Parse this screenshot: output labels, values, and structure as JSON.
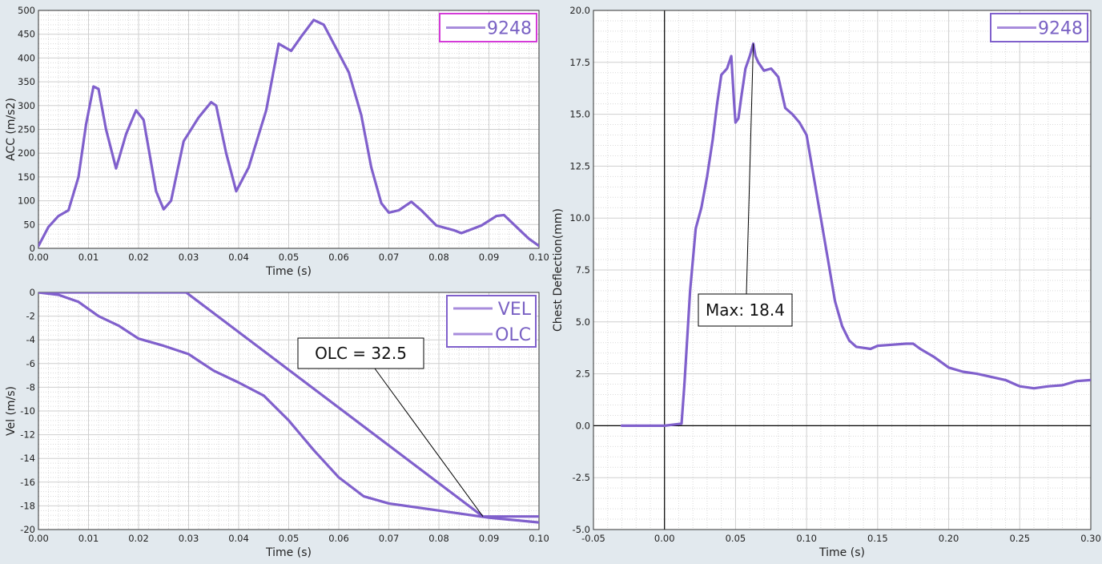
{
  "chart_data": [
    {
      "id": "acc",
      "type": "line",
      "title": "",
      "xlabel": "Time (s)",
      "ylabel": "ACC (m/s2)",
      "xlim": [
        0,
        0.1
      ],
      "ylim": [
        0,
        500
      ],
      "xticks": [
        0,
        0.01,
        0.02,
        0.03,
        0.04,
        0.05,
        0.06,
        0.07,
        0.08,
        0.09,
        0.1
      ],
      "xtick_labels": [
        "0.00",
        "0.01",
        "0.02",
        "0.03",
        "0.04",
        "0.05",
        "0.06",
        "0.07",
        "0.08",
        "0.09",
        "0.10"
      ],
      "yticks": [
        0,
        50,
        100,
        150,
        200,
        250,
        300,
        350,
        400,
        450,
        500
      ],
      "ytick_labels": [
        "0",
        "50",
        "100",
        "150",
        "200",
        "250",
        "300",
        "350",
        "400",
        "450",
        "500"
      ],
      "grid": true,
      "legend_position": "top-right",
      "legend_border_color": "#d43bd8",
      "series": [
        {
          "name": "9248",
          "color": "#8060cc",
          "x": [
            0.0,
            0.002,
            0.004,
            0.006,
            0.008,
            0.0095,
            0.011,
            0.012,
            0.0135,
            0.0155,
            0.0175,
            0.0195,
            0.021,
            0.0235,
            0.025,
            0.0265,
            0.029,
            0.032,
            0.0345,
            0.0355,
            0.0375,
            0.0395,
            0.042,
            0.0455,
            0.048,
            0.0505,
            0.0525,
            0.055,
            0.057,
            0.0595,
            0.062,
            0.0645,
            0.0665,
            0.0685,
            0.07,
            0.072,
            0.0745,
            0.0765,
            0.0795,
            0.083,
            0.0845,
            0.0885,
            0.0915,
            0.093,
            0.0955,
            0.098,
            0.1
          ],
          "y": [
            5,
            45,
            68,
            80,
            150,
            260,
            340,
            335,
            250,
            168,
            240,
            290,
            270,
            120,
            82,
            100,
            225,
            275,
            307,
            300,
            200,
            120,
            170,
            290,
            430,
            415,
            445,
            480,
            470,
            420,
            370,
            280,
            170,
            95,
            75,
            80,
            98,
            80,
            48,
            38,
            32,
            48,
            68,
            70,
            45,
            20,
            5
          ]
        }
      ]
    },
    {
      "id": "vel",
      "type": "line",
      "title": "",
      "xlabel": "Time (s)",
      "ylabel": "Vel (m/s)",
      "xlim": [
        0,
        0.1
      ],
      "ylim": [
        -20,
        0
      ],
      "xticks": [
        0,
        0.01,
        0.02,
        0.03,
        0.04,
        0.05,
        0.06,
        0.07,
        0.08,
        0.09,
        0.1
      ],
      "xtick_labels": [
        "0.00",
        "0.01",
        "0.02",
        "0.03",
        "0.04",
        "0.05",
        "0.06",
        "0.07",
        "0.08",
        "0.09",
        "0.10"
      ],
      "yticks": [
        0,
        -2,
        -4,
        -6,
        -8,
        -10,
        -12,
        -14,
        -16,
        -18,
        -20
      ],
      "ytick_labels": [
        "0",
        "-2",
        "-4",
        "-6",
        "-8",
        "-10",
        "-12",
        "-14",
        "-16",
        "-18",
        "-20"
      ],
      "grid": true,
      "legend_position": "top-right",
      "legend_border_color": "#8060cc",
      "series": [
        {
          "name": "VEL",
          "color": "#8060cc",
          "x": [
            0.0,
            0.004,
            0.008,
            0.012,
            0.016,
            0.02,
            0.025,
            0.03,
            0.035,
            0.04,
            0.045,
            0.05,
            0.055,
            0.06,
            0.065,
            0.07,
            0.08,
            0.09,
            0.1
          ],
          "y": [
            0,
            -0.2,
            -0.8,
            -2.0,
            -2.8,
            -3.9,
            -4.5,
            -5.2,
            -6.6,
            -7.6,
            -8.7,
            -10.8,
            -13.3,
            -15.6,
            -17.2,
            -17.8,
            -18.4,
            -19.0,
            -19.4
          ]
        },
        {
          "name": "OLC",
          "color": "#8060cc",
          "x": [
            0.0,
            0.0295,
            0.0888,
            0.1
          ],
          "y": [
            0,
            0,
            -18.9,
            -18.9
          ]
        }
      ],
      "annotations": [
        {
          "text": "OLC = 32.5",
          "x": 0.0888,
          "y": -18.9
        }
      ]
    },
    {
      "id": "defl",
      "type": "line",
      "title": "",
      "xlabel": "Time (s)",
      "ylabel": "Chest Deflection(mm)",
      "xlim": [
        -0.05,
        0.3
      ],
      "ylim": [
        -5,
        20
      ],
      "xticks": [
        -0.05,
        0,
        0.05,
        0.1,
        0.15,
        0.2,
        0.25,
        0.3
      ],
      "xtick_labels": [
        "-0.05",
        "0.00",
        "0.05",
        "0.10",
        "0.15",
        "0.20",
        "0.25",
        "0.30"
      ],
      "yticks": [
        -5,
        -2.5,
        0,
        2.5,
        5,
        7.5,
        10,
        12.5,
        15,
        17.5,
        20
      ],
      "ytick_labels": [
        "-5.0",
        "-2.5",
        "0.0",
        "2.5",
        "5.0",
        "7.5",
        "10.0",
        "12.5",
        "15.0",
        "17.5",
        "20.0"
      ],
      "grid": true,
      "legend_position": "top-right",
      "legend_border_color": "#8060cc",
      "series": [
        {
          "name": "9248",
          "color": "#8060cc",
          "x": [
            -0.03,
            0.0,
            0.012,
            0.014,
            0.018,
            0.022,
            0.026,
            0.03,
            0.034,
            0.037,
            0.04,
            0.044,
            0.047,
            0.049,
            0.05,
            0.052,
            0.054,
            0.057,
            0.06,
            0.0625,
            0.064,
            0.066,
            0.07,
            0.075,
            0.08,
            0.085,
            0.09,
            0.095,
            0.1,
            0.105,
            0.11,
            0.115,
            0.12,
            0.125,
            0.13,
            0.135,
            0.14,
            0.145,
            0.15,
            0.16,
            0.17,
            0.175,
            0.18,
            0.19,
            0.2,
            0.21,
            0.22,
            0.24,
            0.25,
            0.26,
            0.27,
            0.28,
            0.29,
            0.3
          ],
          "y": [
            0,
            0,
            0.1,
            2.0,
            6.5,
            9.5,
            10.5,
            12.0,
            13.8,
            15.5,
            16.9,
            17.2,
            17.8,
            15.5,
            14.6,
            14.8,
            15.8,
            17.2,
            17.8,
            18.4,
            17.8,
            17.5,
            17.1,
            17.2,
            16.8,
            15.3,
            15.0,
            14.6,
            14.0,
            12.0,
            10.0,
            8.0,
            6.0,
            4.8,
            4.1,
            3.8,
            3.75,
            3.7,
            3.85,
            3.9,
            3.95,
            3.95,
            3.7,
            3.3,
            2.8,
            2.6,
            2.5,
            2.2,
            1.9,
            1.8,
            1.9,
            1.95,
            2.15,
            2.2
          ]
        }
      ],
      "annotations": [
        {
          "text": "Max: 18.4",
          "x": 0.0625,
          "y": 18.4
        }
      ]
    }
  ]
}
